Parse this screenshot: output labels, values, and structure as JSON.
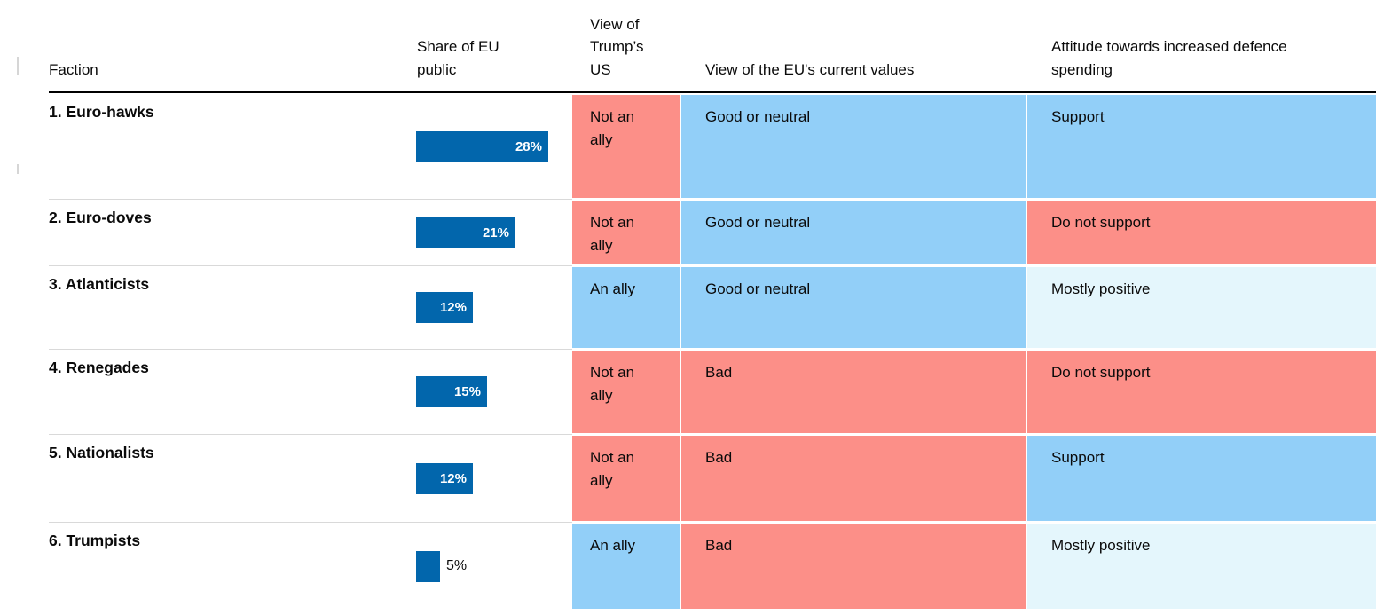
{
  "colors": {
    "positive": "#92CFF8",
    "negative": "#FC8F88",
    "mixed": "#E4F6FC",
    "bar_fill": "#0266AC",
    "row_separator": "#D9D9D9",
    "header_rule": "#000000"
  },
  "header": {
    "columns": [
      "Faction",
      "Share of EU public",
      "View of Trump’s US",
      "View of the EU's current values",
      "Attitude towards increased defence spending"
    ]
  },
  "rows": [
    {
      "faction": "1. Euro-hawks",
      "share": {
        "pct": 28,
        "label": "28%"
      },
      "trump_us": {
        "text": "Not an ally",
        "tone": "negative"
      },
      "eu_values": {
        "text": "Good or neutral",
        "tone": "positive"
      },
      "defence": {
        "text": "Support",
        "tone": "positive"
      }
    },
    {
      "faction": "2. Euro-doves",
      "share": {
        "pct": 21,
        "label": "21%"
      },
      "trump_us": {
        "text": "Not an ally",
        "tone": "negative"
      },
      "eu_values": {
        "text": "Good or neutral",
        "tone": "positive"
      },
      "defence": {
        "text": "Do not support",
        "tone": "negative"
      }
    },
    {
      "faction": "3. Atlanticists",
      "share": {
        "pct": 12,
        "label": "12%"
      },
      "trump_us": {
        "text": "An ally",
        "tone": "positive"
      },
      "eu_values": {
        "text": "Good or neutral",
        "tone": "positive"
      },
      "defence": {
        "text": "Mostly positive",
        "tone": "mixed"
      }
    },
    {
      "faction": "4. Renegades",
      "share": {
        "pct": 15,
        "label": "15%"
      },
      "trump_us": {
        "text": "Not an ally",
        "tone": "negative"
      },
      "eu_values": {
        "text": "Bad",
        "tone": "negative"
      },
      "defence": {
        "text": "Do not support",
        "tone": "negative"
      }
    },
    {
      "faction": "5. Nationalists",
      "share": {
        "pct": 12,
        "label": "12%"
      },
      "trump_us": {
        "text": "Not an ally",
        "tone": "negative"
      },
      "eu_values": {
        "text": "Bad",
        "tone": "negative"
      },
      "defence": {
        "text": "Support",
        "tone": "positive"
      }
    },
    {
      "faction": "6. Trumpists",
      "share": {
        "pct": 5,
        "label": "5%"
      },
      "trump_us": {
        "text": "An ally",
        "tone": "positive"
      },
      "eu_values": {
        "text": "Bad",
        "tone": "negative"
      },
      "defence": {
        "text": "Mostly positive",
        "tone": "mixed"
      }
    }
  ],
  "chart_data": {
    "type": "table",
    "title": "",
    "categories": [
      "1. Euro-hawks",
      "2. Euro-doves",
      "3. Atlanticists",
      "4. Renegades",
      "5. Nationalists",
      "6. Trumpists"
    ],
    "series": [
      {
        "name": "Share of EU public",
        "type": "bar",
        "unit": "%",
        "values": [
          28,
          21,
          12,
          15,
          12,
          5
        ]
      },
      {
        "name": "View of Trump’s US",
        "values": [
          "Not an ally",
          "Not an ally",
          "An ally",
          "Not an ally",
          "Not an ally",
          "An ally"
        ]
      },
      {
        "name": "View of the EU's current values",
        "values": [
          "Good or neutral",
          "Good or neutral",
          "Good or neutral",
          "Bad",
          "Bad",
          "Bad"
        ]
      },
      {
        "name": "Attitude towards increased defence spending",
        "values": [
          "Support",
          "Do not support",
          "Mostly positive",
          "Do not support",
          "Support",
          "Mostly positive"
        ]
      }
    ],
    "cell_tones": {
      "View of Trump’s US": [
        "negative",
        "negative",
        "positive",
        "negative",
        "negative",
        "positive"
      ],
      "View of the EU's current values": [
        "positive",
        "positive",
        "positive",
        "negative",
        "negative",
        "negative"
      ],
      "Attitude towards increased defence spending": [
        "positive",
        "negative",
        "mixed",
        "negative",
        "positive",
        "mixed"
      ]
    },
    "tone_colors": {
      "positive": "#92CFF8",
      "negative": "#FC8F88",
      "mixed": "#E4F6FC"
    },
    "bar_color": "#0266AC",
    "legend": "none",
    "grid": "off"
  }
}
